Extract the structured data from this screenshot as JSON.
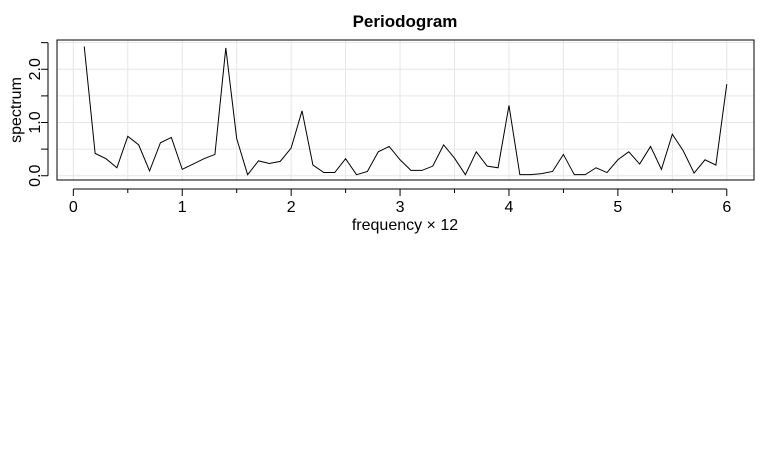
{
  "chart_data": {
    "type": "line",
    "title": "Periodogram",
    "xlabel": "frequency × 12",
    "ylabel": "spectrum",
    "xlim": [
      -0.15,
      6.25
    ],
    "ylim": [
      -0.08,
      2.55
    ],
    "x_ticks": [
      0,
      1,
      2,
      3,
      4,
      5,
      6
    ],
    "x_tick_labels": [
      "0",
      "1",
      "2",
      "3",
      "4",
      "5",
      "6"
    ],
    "y_ticks": [
      0.0,
      0.5,
      1.0,
      1.5,
      2.0,
      2.5
    ],
    "y_tick_labels": [
      "0.0",
      "",
      "1.0",
      "",
      "2.0",
      ""
    ],
    "grid": true,
    "series": [
      {
        "x": [
          0.1,
          0.2,
          0.3,
          0.4,
          0.5,
          0.6,
          0.7,
          0.8,
          0.9,
          1.0,
          1.1,
          1.2,
          1.3,
          1.4,
          1.5,
          1.6,
          1.7,
          1.8,
          1.9,
          2.0,
          2.1,
          2.2,
          2.3,
          2.4,
          2.5,
          2.6,
          2.7,
          2.8,
          2.9,
          3.0,
          3.1,
          3.2,
          3.3,
          3.4,
          3.5,
          3.6,
          3.7,
          3.8,
          3.9,
          4.0,
          4.1,
          4.2,
          4.3,
          4.4,
          4.5,
          4.6,
          4.7,
          4.8,
          4.9,
          5.0,
          5.1,
          5.2,
          5.3,
          5.4,
          5.5,
          5.6,
          5.7,
          5.8,
          5.9,
          6.0
        ],
        "values": [
          2.43,
          0.42,
          0.32,
          0.15,
          0.74,
          0.58,
          0.09,
          0.62,
          0.72,
          0.12,
          0.22,
          0.32,
          0.4,
          2.4,
          0.7,
          0.02,
          0.28,
          0.23,
          0.27,
          0.52,
          1.22,
          0.2,
          0.06,
          0.06,
          0.32,
          0.02,
          0.08,
          0.45,
          0.55,
          0.3,
          0.1,
          0.1,
          0.18,
          0.58,
          0.33,
          0.02,
          0.45,
          0.18,
          0.15,
          1.32,
          0.02,
          0.02,
          0.04,
          0.08,
          0.4,
          0.02,
          0.02,
          0.15,
          0.06,
          0.3,
          0.45,
          0.22,
          0.55,
          0.12,
          0.78,
          0.47,
          0.05,
          0.3,
          0.2,
          1.72
        ]
      }
    ]
  }
}
